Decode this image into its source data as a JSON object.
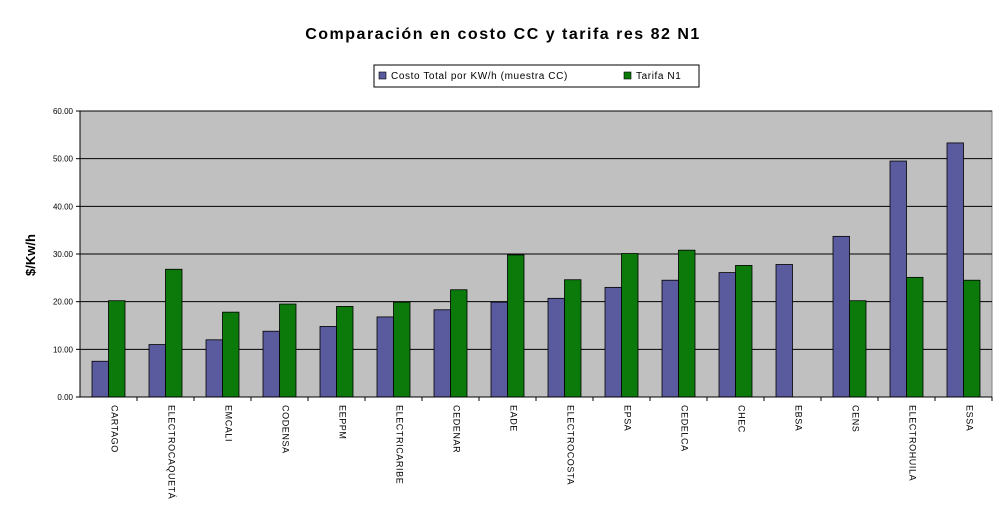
{
  "chart_data": {
    "type": "bar",
    "title": "Comparación en costo CC y tarifa res 82 N1",
    "xlabel": "",
    "ylabel": "$/Kw/h",
    "ylim": [
      0,
      60
    ],
    "yticks": [
      "0.00",
      "10.00",
      "20.00",
      "30.00",
      "40.00",
      "50.00",
      "60.00"
    ],
    "grid": true,
    "legend_position": "top-center",
    "categories": [
      "CARTAGO",
      "ELECTROCAQUETÁ",
      "EMCALI",
      "CODENSA",
      "EEPPM",
      "ELECTRICARIBE",
      "CEDENAR",
      "EADE",
      "ELECTROCOSTA",
      "EPSA",
      "CEDELCA",
      "CHEC",
      "EBSA",
      "CENS",
      "ELECTROHUILA",
      "ESSA"
    ],
    "series": [
      {
        "name": "Costo Total por KW/h (muestra CC)",
        "color": "#5a5a9e",
        "values": [
          7.5,
          11.0,
          12.0,
          13.8,
          14.8,
          16.8,
          18.3,
          19.9,
          20.7,
          23.0,
          24.5,
          26.1,
          27.8,
          33.7,
          49.5,
          53.3
        ]
      },
      {
        "name": "Tarifa N1",
        "color": "#0b7a0b",
        "values": [
          20.2,
          26.8,
          17.8,
          19.5,
          19.0,
          19.9,
          22.5,
          29.8,
          24.6,
          30.1,
          30.8,
          27.6,
          null,
          20.2,
          25.1,
          24.5
        ]
      }
    ],
    "plot_background": "#c0c0c0"
  }
}
